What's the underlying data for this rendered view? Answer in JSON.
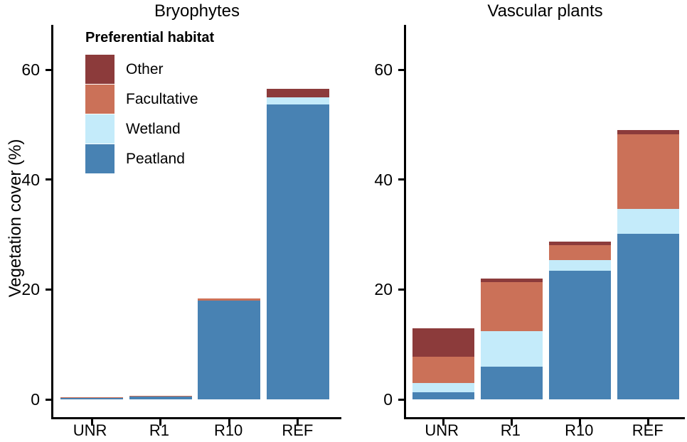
{
  "chart_data": {
    "type": "bar",
    "stacked": true,
    "title": "",
    "xlabel": "",
    "ylabel": "Vegetation cover (%)",
    "y_ticks": [
      0,
      20,
      40,
      60
    ],
    "ylim": [
      0,
      68
    ],
    "grid": "off",
    "legend": {
      "title": "Preferential habitat",
      "position": "inside-top-left-of-first-panel",
      "entries": [
        {
          "key": "other",
          "label": "Other",
          "color": "#8C3B3B"
        },
        {
          "key": "facultative",
          "label": "Facultative",
          "color": "#CB7158"
        },
        {
          "key": "wetland",
          "label": "Wetland",
          "color": "#C4EBFA"
        },
        {
          "key": "peatland",
          "label": "Peatland",
          "color": "#4882B3"
        }
      ]
    },
    "colors": {
      "peatland": "#4882B3",
      "wetland": "#C4EBFA",
      "facultative": "#CB7158",
      "other": "#8C3B3B"
    },
    "stack_order_bottom_to_top": [
      "peatland",
      "wetland",
      "facultative",
      "other"
    ],
    "categories": [
      "UNR",
      "R1",
      "R10",
      "REF"
    ],
    "facets": [
      {
        "title": "Bryophytes",
        "categories": [
          "UNR",
          "R1",
          "R10",
          "REF"
        ],
        "series": [
          {
            "name": "Peatland",
            "key": "peatland",
            "values": [
              0.3,
              0.5,
              18.0,
              53.7
            ]
          },
          {
            "name": "Wetland",
            "key": "wetland",
            "values": [
              0.0,
              0.0,
              0.0,
              1.3
            ]
          },
          {
            "name": "Facultative",
            "key": "facultative",
            "values": [
              0.1,
              0.1,
              0.4,
              0.0
            ]
          },
          {
            "name": "Other",
            "key": "other",
            "values": [
              0.0,
              0.0,
              0.0,
              1.5
            ]
          }
        ],
        "totals": [
          0.4,
          0.6,
          18.4,
          56.5
        ]
      },
      {
        "title": "Vascular plants",
        "categories": [
          "UNR",
          "R1",
          "R10",
          "REF"
        ],
        "series": [
          {
            "name": "Peatland",
            "key": "peatland",
            "values": [
              1.3,
              5.9,
              23.4,
              30.1
            ]
          },
          {
            "name": "Wetland",
            "key": "wetland",
            "values": [
              1.7,
              6.5,
              2.0,
              4.6
            ]
          },
          {
            "name": "Facultative",
            "key": "facultative",
            "values": [
              4.8,
              8.9,
              2.7,
              13.5
            ]
          },
          {
            "name": "Other",
            "key": "other",
            "values": [
              5.2,
              0.7,
              0.6,
              0.8
            ]
          }
        ],
        "totals": [
          13.0,
          22.0,
          28.7,
          49.0
        ]
      }
    ]
  }
}
